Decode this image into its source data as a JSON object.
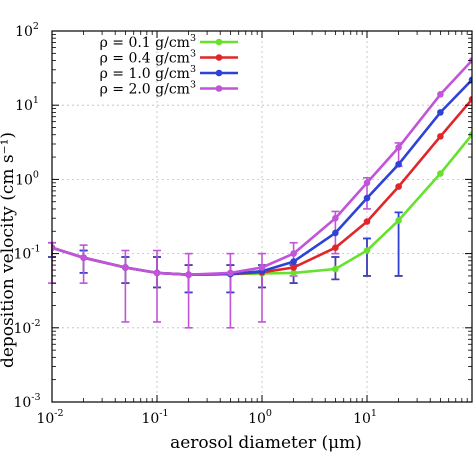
{
  "chart_data": {
    "type": "line",
    "xlabel": "aerosol diameter (μm)",
    "ylabel": "deposition velocity (cm s⁻¹)",
    "x_scale": "log",
    "y_scale": "log",
    "xlim": [
      0.01,
      100
    ],
    "ylim": [
      0.001,
      100
    ],
    "x_ticks": [
      {
        "base": "10",
        "exp": "-2"
      },
      {
        "base": "10",
        "exp": "-1"
      },
      {
        "base": "10",
        "exp": "0"
      },
      {
        "base": "10",
        "exp": "1"
      }
    ],
    "y_ticks": [
      {
        "base": "10",
        "exp": "-3"
      },
      {
        "base": "10",
        "exp": "-2"
      },
      {
        "base": "10",
        "exp": "-1"
      },
      {
        "base": "10",
        "exp": "0"
      },
      {
        "base": "10",
        "exp": "1"
      },
      {
        "base": "10",
        "exp": "2"
      }
    ],
    "grid": true,
    "legend_position": "top-left",
    "x": [
      0.01,
      0.02,
      0.05,
      0.1,
      0.2,
      0.5,
      1,
      2,
      5,
      10,
      20,
      50,
      100
    ],
    "series": [
      {
        "name": "ρ = 0.1 g/cm",
        "name_sup": "3",
        "color": "#66e22e",
        "values": [
          0.12,
          0.088,
          0.065,
          0.055,
          0.052,
          0.053,
          0.054,
          0.055,
          0.062,
          0.11,
          0.28,
          1.2,
          4.0
        ],
        "err_low": [
          0.09,
          0.055,
          0.04,
          0.035,
          0.03,
          0.03,
          0.035,
          0.04,
          0.045,
          0.05,
          0.05,
          null,
          null
        ],
        "err_high": [
          0.14,
          0.11,
          0.09,
          0.09,
          0.07,
          0.07,
          0.07,
          0.07,
          0.09,
          0.16,
          0.36,
          null,
          null
        ]
      },
      {
        "name": "ρ = 0.4 g/cm",
        "name_sup": "3",
        "color": "#e0262a",
        "values": [
          0.12,
          0.088,
          0.065,
          0.055,
          0.052,
          0.053,
          0.056,
          0.065,
          0.12,
          0.27,
          0.8,
          3.8,
          12.0
        ],
        "err_low": [
          0.09,
          0.055,
          0.04,
          0.035,
          0.03,
          0.03,
          0.035,
          0.04,
          0.045,
          0.05,
          0.05,
          null,
          null
        ],
        "err_high": [
          0.14,
          0.11,
          0.09,
          0.09,
          0.07,
          0.07,
          0.07,
          0.07,
          0.09,
          0.16,
          0.36,
          null,
          null
        ]
      },
      {
        "name": "ρ = 1.0 g/cm",
        "name_sup": "3",
        "color": "#2e42d6",
        "values": [
          0.12,
          0.088,
          0.065,
          0.055,
          0.052,
          0.053,
          0.058,
          0.078,
          0.19,
          0.56,
          1.6,
          8.0,
          22.0
        ],
        "err_low": [
          0.09,
          0.055,
          0.04,
          0.035,
          0.03,
          0.03,
          0.035,
          0.04,
          0.045,
          0.05,
          0.05,
          null,
          null
        ],
        "err_high": [
          0.14,
          0.11,
          0.09,
          0.09,
          0.07,
          0.07,
          0.07,
          0.07,
          0.09,
          0.16,
          0.36,
          null,
          null
        ]
      },
      {
        "name": "ρ = 2.0 g/cm",
        "name_sup": "3",
        "color": "#c154d8",
        "values": [
          0.12,
          0.088,
          0.065,
          0.055,
          0.052,
          0.055,
          0.065,
          0.1,
          0.3,
          0.9,
          2.7,
          14.0,
          40.0
        ],
        "err_low": [
          0.04,
          0.04,
          0.012,
          0.012,
          0.01,
          0.01,
          0.012,
          0.05,
          0.1,
          0.4,
          1.5,
          null,
          null
        ],
        "err_high": [
          0.14,
          0.13,
          0.11,
          0.11,
          0.1,
          0.1,
          0.1,
          0.14,
          0.37,
          1.05,
          3.1,
          null,
          null
        ]
      }
    ]
  }
}
